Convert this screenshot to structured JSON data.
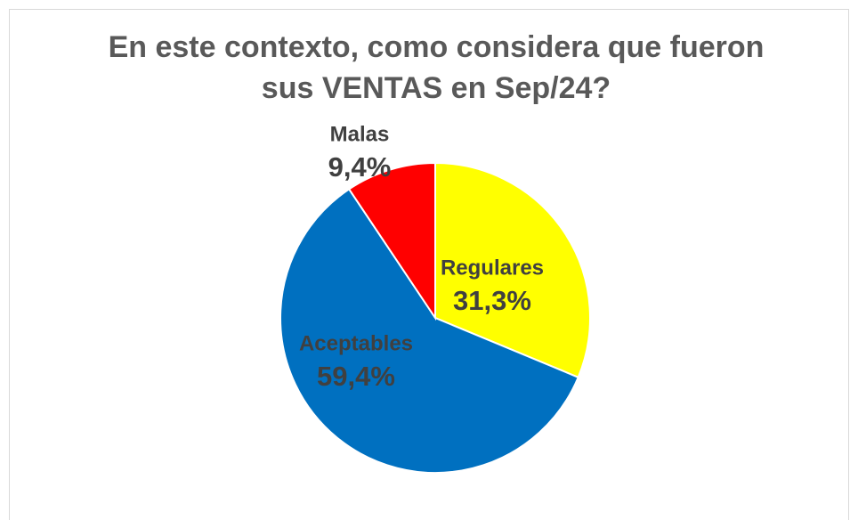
{
  "chart_data": {
    "type": "pie",
    "title": "En este contexto, como considera que fueron sus VENTAS en Sep/24?",
    "categories": [
      "Regulares",
      "Aceptables",
      "Malas"
    ],
    "values": [
      31.3,
      59.4,
      9.4
    ],
    "value_labels": [
      "31,3%",
      "59,4%",
      "9,4%"
    ],
    "colors": [
      "#ffff00",
      "#0070c0",
      "#ff0000"
    ]
  }
}
